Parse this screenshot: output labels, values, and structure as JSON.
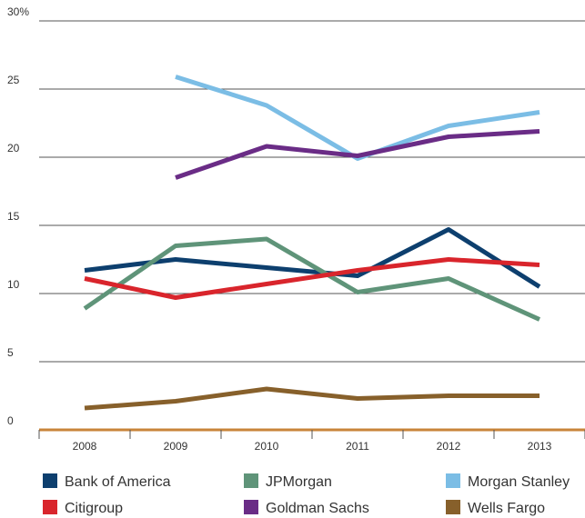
{
  "chart_data": {
    "type": "line",
    "categories": [
      "2008",
      "2009",
      "2010",
      "2011",
      "2012",
      "2013"
    ],
    "series": [
      {
        "name": "Bank of America",
        "color": "#0d3f6e",
        "values": [
          11.7,
          12.5,
          11.9,
          11.3,
          14.7,
          10.5
        ]
      },
      {
        "name": "JPMorgan",
        "color": "#5f9479",
        "values": [
          8.9,
          13.5,
          14.0,
          10.1,
          11.1,
          8.1
        ]
      },
      {
        "name": "Morgan Stanley",
        "color": "#7bbde5",
        "values": [
          null,
          25.9,
          23.8,
          19.9,
          22.3,
          23.3
        ]
      },
      {
        "name": "Citigroup",
        "color": "#d9252c",
        "values": [
          11.1,
          9.7,
          10.7,
          11.7,
          12.5,
          12.1
        ]
      },
      {
        "name": "Goldman Sachs",
        "color": "#6a2c86",
        "values": [
          null,
          18.5,
          20.8,
          20.1,
          21.5,
          21.9
        ]
      },
      {
        "name": "Wells Fargo",
        "color": "#87602b",
        "values": [
          1.6,
          2.1,
          3.0,
          2.3,
          2.5,
          2.5
        ]
      }
    ],
    "ylim": [
      0,
      30
    ],
    "yticks": [
      0,
      5,
      10,
      15,
      20,
      {
        "value": 30,
        "label": "30%"
      },
      25
    ],
    "grid": true,
    "legend": "bottom"
  }
}
